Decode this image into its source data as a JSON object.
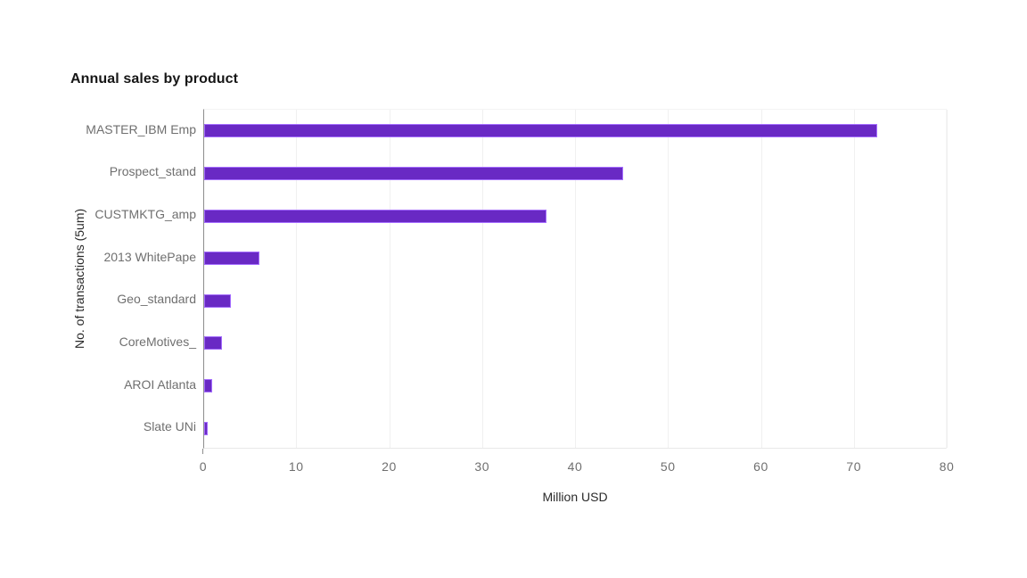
{
  "chart_data": {
    "type": "bar",
    "orientation": "horizontal",
    "title": "Annual sales by product",
    "xlabel": "Million USD",
    "ylabel": "No. of transactions (5um)",
    "categories": [
      "MASTER_IBM Emp",
      "Prospect_stand",
      "CUSTMKTG_amp",
      "2013 WhitePape",
      "Geo_standard",
      "CoreMotives_",
      "AROI Atlanta",
      "Slate UNi"
    ],
    "values": [
      72.4,
      45.1,
      36.8,
      5.9,
      2.9,
      1.9,
      0.9,
      0.35
    ],
    "xlim": [
      0,
      80
    ],
    "xticks": [
      0,
      10,
      20,
      30,
      40,
      50,
      60,
      70,
      80
    ],
    "grid": "vertical",
    "legend": "none",
    "colors": {
      "bar_fill": "#6929c4",
      "bar_border": "#a56eff",
      "axis_line": "#8d8d8d",
      "gridline": "#f0f0f0",
      "tick_text": "#6f6f6f",
      "title_text": "#161616"
    }
  }
}
